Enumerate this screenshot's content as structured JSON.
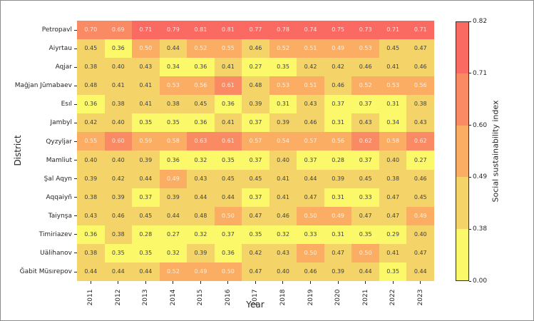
{
  "chart_data": {
    "type": "heatmap",
    "xlabel": "Year",
    "ylabel": "District",
    "x": [
      "2011",
      "2012",
      "2013",
      "2014",
      "2015",
      "2016",
      "2017",
      "2018",
      "2019",
      "2020",
      "2021",
      "2022",
      "2023"
    ],
    "y": [
      "Petropavl",
      "Aiyrtau",
      "Aqjar",
      "Mağjan Jūmabaev",
      "Esıl",
      "Jambyl",
      "Qyzyljar",
      "Mamliut",
      "Şal Aqyn",
      "Aqqaiyñ",
      "Taiynşa",
      "Timiriazev",
      "Uälihanov",
      "Ğabit Müsırepov"
    ],
    "values": [
      [
        0.7,
        0.69,
        0.71,
        0.79,
        0.81,
        0.81,
        0.77,
        0.78,
        0.74,
        0.75,
        0.73,
        0.71,
        0.71
      ],
      [
        0.45,
        0.36,
        0.5,
        0.44,
        0.52,
        0.55,
        0.46,
        0.52,
        0.51,
        0.49,
        0.53,
        0.45,
        0.47
      ],
      [
        0.38,
        0.4,
        0.43,
        0.34,
        0.36,
        0.41,
        0.27,
        0.35,
        0.42,
        0.42,
        0.46,
        0.41,
        0.46
      ],
      [
        0.48,
        0.41,
        0.41,
        0.53,
        0.56,
        0.61,
        0.48,
        0.53,
        0.51,
        0.46,
        0.52,
        0.53,
        0.56
      ],
      [
        0.36,
        0.38,
        0.41,
        0.38,
        0.45,
        0.36,
        0.39,
        0.31,
        0.43,
        0.37,
        0.37,
        0.31,
        0.38
      ],
      [
        0.42,
        0.4,
        0.35,
        0.35,
        0.36,
        0.41,
        0.37,
        0.39,
        0.46,
        0.31,
        0.43,
        0.34,
        0.43
      ],
      [
        0.55,
        0.6,
        0.59,
        0.58,
        0.63,
        0.61,
        0.57,
        0.54,
        0.57,
        0.56,
        0.62,
        0.58,
        0.62
      ],
      [
        0.4,
        0.4,
        0.39,
        0.36,
        0.32,
        0.35,
        0.37,
        0.4,
        0.37,
        0.28,
        0.37,
        0.4,
        0.27
      ],
      [
        0.39,
        0.42,
        0.44,
        0.49,
        0.43,
        0.45,
        0.45,
        0.41,
        0.44,
        0.39,
        0.45,
        0.38,
        0.46
      ],
      [
        0.38,
        0.39,
        0.37,
        0.39,
        0.44,
        0.44,
        0.37,
        0.41,
        0.47,
        0.31,
        0.33,
        0.47,
        0.45
      ],
      [
        0.43,
        0.46,
        0.45,
        0.44,
        0.48,
        0.5,
        0.47,
        0.46,
        0.5,
        0.49,
        0.47,
        0.47,
        0.49
      ],
      [
        0.36,
        0.38,
        0.28,
        0.27,
        0.32,
        0.37,
        0.35,
        0.32,
        0.33,
        0.31,
        0.35,
        0.29,
        0.4
      ],
      [
        0.38,
        0.35,
        0.35,
        0.32,
        0.39,
        0.36,
        0.42,
        0.43,
        0.5,
        0.47,
        0.5,
        0.41,
        0.47
      ],
      [
        0.44,
        0.44,
        0.44,
        0.52,
        0.49,
        0.5,
        0.47,
        0.4,
        0.46,
        0.39,
        0.44,
        0.35,
        0.44
      ]
    ],
    "colorbar": {
      "label": "Social sustainability index",
      "boundaries": [
        0.0,
        0.38,
        0.49,
        0.6,
        0.71,
        0.82
      ],
      "colors": [
        "#fbf96a",
        "#f4d469",
        "#fbad63",
        "#fa8a64",
        "#fa6a62"
      ],
      "spacing": "uniform",
      "position": "right"
    },
    "style": {
      "dark_text": "#3f3f3f",
      "light_text": "rgba(255,255,255,0.80)",
      "light_text_min_bin": 2,
      "tick_color": "#262626",
      "figure_border": "#8c8c8c",
      "colorbar_border": "#2b2b2b"
    },
    "grid": false,
    "annotations": true
  }
}
